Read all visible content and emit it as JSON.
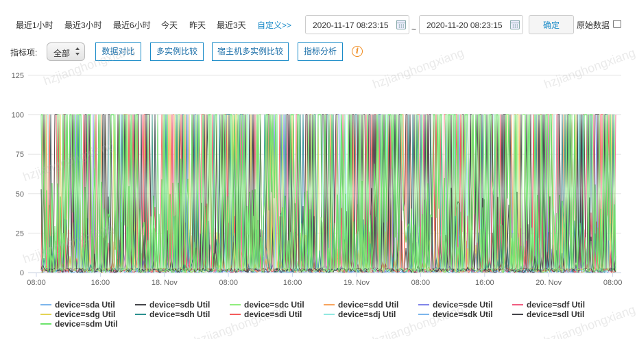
{
  "toolbar": {
    "ranges": [
      {
        "label": "最近1小时",
        "active": false
      },
      {
        "label": "最近3小时",
        "active": false
      },
      {
        "label": "最近6小时",
        "active": false
      },
      {
        "label": "今天",
        "active": false
      },
      {
        "label": "昨天",
        "active": false
      },
      {
        "label": "最近3天",
        "active": false
      },
      {
        "label": "自定义>>",
        "active": true
      }
    ],
    "start_date": "2020-11-17 08:23:15",
    "end_date": "2020-11-20 08:23:15",
    "tilde": "~",
    "confirm_label": "确定",
    "raw_data_label": "原始数据",
    "raw_data_checked": false
  },
  "filters": {
    "metric_label": "指标项:",
    "metric_selected": "全部",
    "tabs": [
      "数据对比",
      "多实例比较",
      "宿主机多实例比较",
      "指标分析"
    ],
    "info_icon": "info-icon"
  },
  "watermark_text": "hzjianghongxiang",
  "colors": {
    "accent": "#1a8bc8",
    "info": "#f08a1c",
    "gridline": "#e6e6e6",
    "axis": "#ccd6eb"
  },
  "chart_data": {
    "type": "line",
    "title": "",
    "xlabel": "",
    "ylabel": "",
    "ylim": [
      0,
      125
    ],
    "yticks": [
      0,
      25,
      50,
      75,
      100,
      125
    ],
    "xticks": [
      "08:00",
      "16:00",
      "18. Nov",
      "08:00",
      "16:00",
      "19. Nov",
      "08:00",
      "16:00",
      "20. Nov",
      "08:00"
    ],
    "x_range": [
      "2020-11-17 08:23",
      "2020-11-20 08:23"
    ],
    "legend_position": "bottom",
    "series": [
      {
        "name": "device=sda Util",
        "color": "#7cb5ec",
        "level": 2
      },
      {
        "name": "device=sdb Util",
        "color": "#434348",
        "level": 30
      },
      {
        "name": "device=sdc Util",
        "color": "#90ed7d",
        "level": 25
      },
      {
        "name": "device=sdd Util",
        "color": "#f7a35c",
        "level": 15
      },
      {
        "name": "device=sde Util",
        "color": "#8085e9",
        "level": 10
      },
      {
        "name": "device=sdf Util",
        "color": "#f15c80",
        "level": 20
      },
      {
        "name": "device=sdg Util",
        "color": "#e4d354",
        "level": 15
      },
      {
        "name": "device=sdh Util",
        "color": "#2b908f",
        "level": 20
      },
      {
        "name": "device=sdi Util",
        "color": "#f45b5b",
        "level": 25
      },
      {
        "name": "device=sdj Util",
        "color": "#91e8e1",
        "level": 10
      },
      {
        "name": "device=sdk Util",
        "color": "#7cb5ec",
        "level": 2
      },
      {
        "name": "device=sdl Util",
        "color": "#434348",
        "level": 30
      },
      {
        "name": "device=sdm Util",
        "color": "#6be36b",
        "level": 40
      }
    ]
  }
}
